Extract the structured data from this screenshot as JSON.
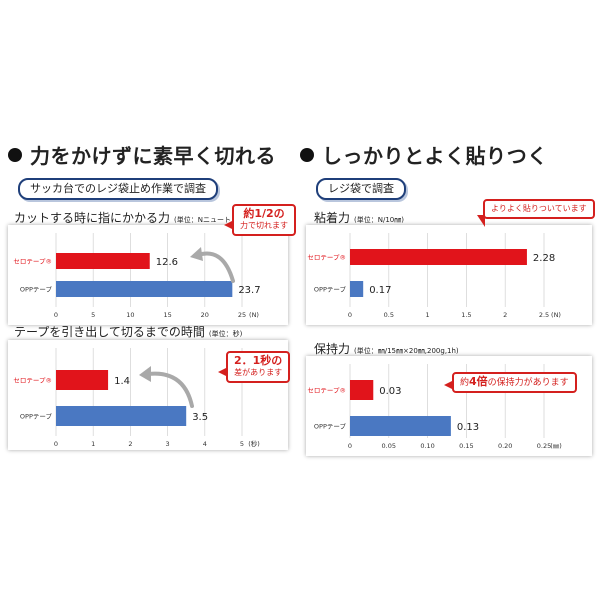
{
  "left": {
    "heading": "力をかけずに素早く切れる",
    "pill": "サッカ台でのレジ袋止め作業で調査"
  },
  "right": {
    "heading": "しっかりとよく貼りつく",
    "pill": "レジ袋で調査"
  },
  "colors": {
    "red": "#e1141b",
    "blue": "#4a78c2",
    "callout": "#d4201e",
    "arrow": "#a9a9a9"
  },
  "chart_data": [
    {
      "type": "bar",
      "title": "カットする時に指にかかる力",
      "unit_note": "(単位：Nニュートン)",
      "categories": [
        "セロテープ®",
        "OPPテープ"
      ],
      "values": [
        12.6,
        23.7
      ],
      "value_labels": [
        "12.6",
        "23.7"
      ],
      "xlim": [
        0,
        25
      ],
      "xticks": [
        "0",
        "5",
        "10",
        "15",
        "20",
        "25"
      ],
      "xunit": "(N)",
      "callout": {
        "line1": "約1/2の",
        "line2": "力で切れます"
      }
    },
    {
      "type": "bar",
      "title": "テープを引き出して切るまでの時間",
      "unit_note": "(単位：秒)",
      "categories": [
        "セロテープ®",
        "OPPテープ"
      ],
      "values": [
        1.4,
        3.5
      ],
      "value_labels": [
        "1.4",
        "3.5"
      ],
      "xlim": [
        0,
        5
      ],
      "xticks": [
        "0",
        "1",
        "2",
        "3",
        "4",
        "5"
      ],
      "xunit": "(秒)",
      "callout": {
        "line1": "2．1秒の",
        "line2": "差があります"
      }
    },
    {
      "type": "bar",
      "title": "粘着力",
      "unit_note": "(単位：N/10㎜)",
      "categories": [
        "セロテープ®",
        "OPPテープ"
      ],
      "values": [
        2.28,
        0.17
      ],
      "value_labels": [
        "2.28",
        "0.17"
      ],
      "xlim": [
        0,
        2.5
      ],
      "xticks": [
        "0",
        "0.5",
        "1",
        "1.5",
        "2",
        "2.5"
      ],
      "xunit": "(N)",
      "callout": {
        "line1": "よりよく貼りついています"
      }
    },
    {
      "type": "bar",
      "title": "保持力",
      "unit_note": "(単位：㎜/15㎜×20㎜,200g,1h)",
      "categories": [
        "セロテープ®",
        "OPPテープ"
      ],
      "values": [
        0.03,
        0.13
      ],
      "value_labels": [
        "0.03",
        "0.13"
      ],
      "xlim": [
        0,
        0.25
      ],
      "xticks": [
        "0",
        "0.05",
        "0.10",
        "0.15",
        "0.20",
        "0.25"
      ],
      "xunit": "(㎜)",
      "callout": {
        "prefix": "約",
        "emph": "4倍",
        "suffix": "の保持力があります"
      }
    }
  ]
}
